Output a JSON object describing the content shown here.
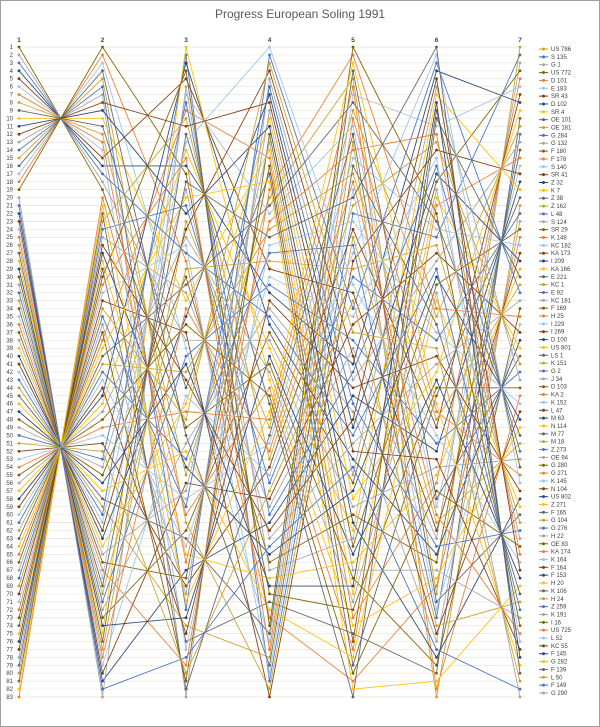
{
  "chart_data": {
    "type": "line",
    "subtype": "bump-rank-progress",
    "title": "Progress European Soling 1991",
    "xlabel": "",
    "ylabel": "",
    "rank_axis": {
      "min": 1,
      "max": 83,
      "inverted": true
    },
    "legend_position": "right",
    "grid": "horizontal",
    "races": [
      {
        "label": "1",
        "ranks": [
          8,
          43,
          78,
          30,
          65,
          17,
          52,
          4,
          39,
          74,
          26,
          61,
          13,
          48,
          83,
          35,
          70,
          22,
          57,
          9,
          44,
          79,
          31,
          66,
          18,
          53,
          5,
          40,
          75,
          27,
          62,
          14,
          49,
          1,
          36,
          71,
          23,
          58,
          10,
          45,
          80,
          32,
          67,
          19,
          54,
          6,
          41,
          76,
          28,
          63,
          15,
          50,
          2,
          37,
          72,
          24,
          59,
          11,
          46,
          81,
          33,
          68,
          20,
          55,
          7,
          42,
          77,
          29,
          64,
          16,
          51,
          3,
          38,
          73,
          25,
          60,
          12,
          47,
          82,
          34,
          69,
          21,
          56
        ]
      },
      {
        "label": "2",
        "ranks": [
          12,
          60,
          25,
          73,
          38,
          3,
          51,
          16,
          64,
          29,
          77,
          42,
          7,
          55,
          20,
          68,
          33,
          81,
          46,
          11,
          59,
          24,
          72,
          37,
          2,
          50,
          15,
          63,
          28,
          76,
          41,
          6,
          54,
          19,
          67,
          32,
          80,
          45,
          10,
          58,
          23,
          71,
          36,
          1,
          49,
          14,
          62,
          27,
          75,
          40,
          5,
          53,
          18,
          66,
          31,
          79,
          44,
          9,
          57,
          22,
          70,
          35,
          83,
          48,
          13,
          61,
          26,
          74,
          39,
          4,
          52,
          17,
          65,
          30,
          78,
          43,
          8,
          56,
          21,
          69,
          34,
          82,
          47
        ]
      },
      {
        "label": "3",
        "ranks": [
          55,
          2,
          32,
          62,
          9,
          39,
          69,
          16,
          46,
          76,
          23,
          53,
          83,
          30,
          60,
          7,
          37,
          67,
          14,
          44,
          74,
          21,
          51,
          81,
          28,
          58,
          5,
          35,
          65,
          12,
          42,
          72,
          19,
          49,
          79,
          26,
          56,
          3,
          33,
          63,
          10,
          40,
          70,
          17,
          47,
          77,
          24,
          54,
          1,
          31,
          61,
          8,
          38,
          68,
          15,
          45,
          75,
          22,
          52,
          82,
          29,
          59,
          6,
          36,
          66,
          13,
          43,
          73,
          20,
          50,
          80,
          27,
          57,
          4,
          34,
          64,
          11,
          41,
          71,
          18,
          48,
          78,
          25
        ]
      },
      {
        "label": "4",
        "ranks": [
          20,
          81,
          59,
          37,
          15,
          76,
          54,
          32,
          10,
          71,
          49,
          27,
          5,
          66,
          44,
          22,
          83,
          61,
          39,
          17,
          78,
          56,
          34,
          12,
          73,
          51,
          29,
          7,
          68,
          46,
          24,
          2,
          63,
          41,
          19,
          80,
          58,
          36,
          14,
          75,
          53,
          31,
          9,
          70,
          48,
          26,
          4,
          65,
          43,
          21,
          82,
          60,
          38,
          16,
          77,
          55,
          33,
          11,
          72,
          50,
          28,
          6,
          67,
          45,
          23,
          1,
          62,
          40,
          18,
          79,
          57,
          35,
          13,
          74,
          52,
          30,
          8,
          69,
          47,
          25,
          3,
          64,
          42
        ]
      },
      {
        "label": "5",
        "ranks": [
          5,
          22,
          39,
          56,
          73,
          7,
          24,
          41,
          58,
          75,
          9,
          26,
          43,
          60,
          77,
          11,
          28,
          45,
          62,
          79,
          13,
          30,
          47,
          64,
          81,
          15,
          32,
          49,
          66,
          83,
          17,
          34,
          51,
          68,
          2,
          19,
          36,
          53,
          70,
          4,
          21,
          38,
          55,
          72,
          6,
          23,
          40,
          57,
          74,
          8,
          25,
          42,
          59,
          76,
          10,
          27,
          44,
          61,
          78,
          12,
          29,
          46,
          63,
          80,
          14,
          31,
          48,
          65,
          82,
          16,
          33,
          50,
          67,
          1,
          18,
          35,
          52,
          69,
          3,
          20,
          37,
          54,
          71
        ]
      },
      {
        "label": "6",
        "ranks": [
          70,
          25,
          63,
          18,
          56,
          11,
          49,
          4,
          42,
          80,
          35,
          73,
          28,
          66,
          21,
          59,
          14,
          52,
          7,
          45,
          83,
          38,
          76,
          31,
          69,
          24,
          62,
          17,
          55,
          10,
          48,
          3,
          41,
          79,
          34,
          72,
          27,
          65,
          20,
          58,
          13,
          51,
          6,
          44,
          82,
          37,
          75,
          30,
          68,
          23,
          61,
          16,
          54,
          9,
          47,
          2,
          40,
          78,
          33,
          71,
          26,
          64,
          19,
          57,
          12,
          50,
          5,
          43,
          81,
          36,
          74,
          29,
          67,
          22,
          60,
          15,
          53,
          8,
          46,
          1,
          39,
          77,
          32
        ]
      },
      {
        "label": "7",
        "ranks": [
          1,
          2,
          3,
          4,
          5,
          6,
          7,
          8,
          9,
          10,
          11,
          12,
          13,
          14,
          15,
          16,
          17,
          18,
          19,
          20,
          21,
          22,
          23,
          24,
          25,
          26,
          27,
          28,
          29,
          30,
          31,
          32,
          33,
          34,
          35,
          36,
          37,
          38,
          39,
          40,
          41,
          42,
          43,
          44,
          45,
          46,
          47,
          48,
          49,
          50,
          51,
          52,
          53,
          54,
          55,
          56,
          57,
          58,
          59,
          60,
          61,
          62,
          63,
          64,
          65,
          66,
          67,
          68,
          69,
          70,
          71,
          72,
          73,
          74,
          75,
          76,
          77,
          78,
          79,
          80,
          81,
          82,
          83
        ]
      }
    ],
    "palette": [
      "#C9A227",
      "#4472C4",
      "#A5A5A5",
      "#7F6000",
      "#ED7D31",
      "#9DC3E6",
      "#843C0C",
      "#264478",
      "#FFC000",
      "#636363"
    ],
    "series": [
      {
        "name": "US 786",
        "color": "#C9A227"
      },
      {
        "name": "S 135",
        "color": "#4472C4"
      },
      {
        "name": "G 1",
        "color": "#A5A5A5"
      },
      {
        "name": "US 772",
        "color": "#7F6000"
      },
      {
        "name": "D 101",
        "color": "#ED7D31"
      },
      {
        "name": "E 183",
        "color": "#9DC3E6"
      },
      {
        "name": "SR 43",
        "color": "#843C0C"
      },
      {
        "name": "D 102",
        "color": "#264478"
      },
      {
        "name": "SR 4",
        "color": "#FFC000"
      },
      {
        "name": "OE 101",
        "color": "#636363"
      },
      {
        "name": "OE 181",
        "color": "#C9A227"
      },
      {
        "name": "G 284",
        "color": "#4472C4"
      },
      {
        "name": "G 132",
        "color": "#A5A5A5"
      },
      {
        "name": "F 180",
        "color": "#7F6000"
      },
      {
        "name": "F 178",
        "color": "#ED7D31"
      },
      {
        "name": "S 140",
        "color": "#9DC3E6"
      },
      {
        "name": "SR 41",
        "color": "#843C0C"
      },
      {
        "name": "Z 32",
        "color": "#264478"
      },
      {
        "name": "K 7",
        "color": "#FFC000"
      },
      {
        "name": "Z 38",
        "color": "#636363"
      },
      {
        "name": "Z 162",
        "color": "#C9A227"
      },
      {
        "name": "L 48",
        "color": "#4472C4"
      },
      {
        "name": "S 124",
        "color": "#A5A5A5"
      },
      {
        "name": "SR 29",
        "color": "#7F6000"
      },
      {
        "name": "K 148",
        "color": "#ED7D31"
      },
      {
        "name": "KC 182",
        "color": "#9DC3E6"
      },
      {
        "name": "KA 173",
        "color": "#843C0C"
      },
      {
        "name": "I 209",
        "color": "#264478"
      },
      {
        "name": "KA 166",
        "color": "#FFC000"
      },
      {
        "name": "E 221",
        "color": "#636363"
      },
      {
        "name": "KC 1",
        "color": "#C9A227"
      },
      {
        "name": "E 92",
        "color": "#4472C4"
      },
      {
        "name": "KC 181",
        "color": "#A5A5A5"
      },
      {
        "name": "F 169",
        "color": "#7F6000"
      },
      {
        "name": "H 25",
        "color": "#ED7D31"
      },
      {
        "name": "I 229",
        "color": "#9DC3E6"
      },
      {
        "name": "I 269",
        "color": "#843C0C"
      },
      {
        "name": "D 100",
        "color": "#264478"
      },
      {
        "name": "US 801",
        "color": "#FFC000"
      },
      {
        "name": "LS 1",
        "color": "#636363"
      },
      {
        "name": "K 151",
        "color": "#C9A227"
      },
      {
        "name": "G 2",
        "color": "#4472C4"
      },
      {
        "name": "J 34",
        "color": "#A5A5A5"
      },
      {
        "name": "D 103",
        "color": "#7F6000"
      },
      {
        "name": "KA 2",
        "color": "#ED7D31"
      },
      {
        "name": "K 152",
        "color": "#9DC3E6"
      },
      {
        "name": "L 47",
        "color": "#843C0C"
      },
      {
        "name": "M 63",
        "color": "#264478"
      },
      {
        "name": "N 114",
        "color": "#FFC000"
      },
      {
        "name": "M 77",
        "color": "#636363"
      },
      {
        "name": "M 18",
        "color": "#C9A227"
      },
      {
        "name": "Z 273",
        "color": "#4472C4"
      },
      {
        "name": "OE 94",
        "color": "#A5A5A5"
      },
      {
        "name": "G 280",
        "color": "#7F6000"
      },
      {
        "name": "G 271",
        "color": "#ED7D31"
      },
      {
        "name": "K 145",
        "color": "#9DC3E6"
      },
      {
        "name": "N 104",
        "color": "#843C0C"
      },
      {
        "name": "US 802",
        "color": "#264478"
      },
      {
        "name": "Z 271",
        "color": "#FFC000"
      },
      {
        "name": "F 165",
        "color": "#636363"
      },
      {
        "name": "G 104",
        "color": "#C9A227"
      },
      {
        "name": "G 276",
        "color": "#4472C4"
      },
      {
        "name": "H 22",
        "color": "#A5A5A5"
      },
      {
        "name": "OE 83",
        "color": "#7F6000"
      },
      {
        "name": "KA 174",
        "color": "#ED7D31"
      },
      {
        "name": "K 164",
        "color": "#9DC3E6"
      },
      {
        "name": "F 164",
        "color": "#843C0C"
      },
      {
        "name": "F 153",
        "color": "#264478"
      },
      {
        "name": "H 20",
        "color": "#FFC000"
      },
      {
        "name": "K 106",
        "color": "#636363"
      },
      {
        "name": "H 24",
        "color": "#C9A227"
      },
      {
        "name": "Z 259",
        "color": "#4472C4"
      },
      {
        "name": "K 191",
        "color": "#A5A5A5"
      },
      {
        "name": "I 16",
        "color": "#7F6000"
      },
      {
        "name": "US 725",
        "color": "#ED7D31"
      },
      {
        "name": "L 52",
        "color": "#9DC3E6"
      },
      {
        "name": "KC 55",
        "color": "#843C0C"
      },
      {
        "name": "F 145",
        "color": "#264478"
      },
      {
        "name": "G 282",
        "color": "#FFC000"
      },
      {
        "name": "F 139",
        "color": "#636363"
      },
      {
        "name": "L 50",
        "color": "#C9A227"
      },
      {
        "name": "F 149",
        "color": "#4472C4"
      },
      {
        "name": "G 290",
        "color": "#A5A5A5"
      }
    ]
  }
}
